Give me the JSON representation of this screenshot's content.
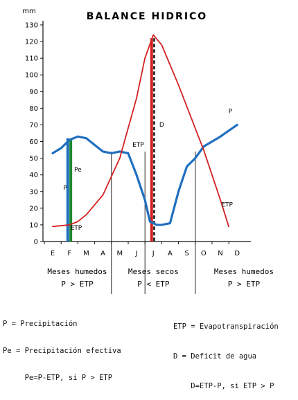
{
  "chart_data": {
    "type": "line",
    "title": "BALANCE HIDRICO",
    "ylabel": "mm",
    "ylim": [
      0,
      130
    ],
    "yticks": [
      0,
      10,
      20,
      30,
      40,
      50,
      60,
      70,
      80,
      90,
      100,
      110,
      120,
      130
    ],
    "categories": [
      "E",
      "F",
      "M",
      "A",
      "M",
      "J",
      "J",
      "A",
      "S",
      "O",
      "N",
      "D"
    ],
    "series": [
      {
        "name": "P",
        "color": "#1f6fbf",
        "x": [
          0,
          0.5,
          1,
          1.5,
          2,
          2.5,
          3,
          3.5,
          4,
          4.5,
          5,
          5.5,
          5.8,
          6.2,
          6.5,
          7,
          7.5,
          8,
          8.5,
          9,
          10,
          11
        ],
        "values": [
          53,
          56,
          61,
          63,
          62,
          58,
          54,
          53,
          54,
          53,
          40,
          25,
          12,
          10,
          10,
          11,
          30,
          45,
          50,
          57,
          63,
          70
        ]
      },
      {
        "name": "ETP",
        "color": "#d42020",
        "x": [
          0,
          1,
          1.5,
          2,
          3,
          4,
          5,
          5.5,
          6,
          6.5,
          7,
          7.5,
          8,
          8.5,
          9,
          10,
          10.5
        ],
        "values": [
          9,
          10,
          12,
          16,
          28,
          50,
          86,
          110,
          124,
          118,
          106,
          94,
          81,
          68,
          55,
          25,
          9
        ]
      }
    ],
    "bars": [
      {
        "name": "P",
        "x": 0.9,
        "value": 62,
        "color": "#1f6fbf"
      },
      {
        "name": "Pe",
        "x": 1.08,
        "value": 61,
        "color": "#1e8a2e"
      },
      {
        "name": "ETP",
        "x": 5.9,
        "value": 122,
        "color": "#d42020"
      },
      {
        "name": "D",
        "x": 6.05,
        "value": 122,
        "color": "#111111"
      }
    ],
    "annotations": [
      {
        "text": "P",
        "x": 0.75,
        "y": 31
      },
      {
        "text": "Pe",
        "x": 1.5,
        "y": 42
      },
      {
        "text": "ETP",
        "x": 1.4,
        "y": 7
      },
      {
        "text": "ETP",
        "x": 5.1,
        "y": 57
      },
      {
        "text": "D",
        "x": 6.5,
        "y": 69
      },
      {
        "text": "P",
        "x": 10.6,
        "y": 77
      },
      {
        "text": "ETP",
        "x": 10.4,
        "y": 21
      }
    ],
    "periods": [
      {
        "label": "Meses humedos",
        "condition": "P > ETP"
      },
      {
        "label": "Meses secos",
        "condition": "P < ETP"
      },
      {
        "label": "Meses humedos",
        "condition": "P > ETP"
      }
    ]
  },
  "legend": {
    "left": [
      "P = Precipitación",
      "Pe = Precipitación efectiva",
      "     Pe=P-ETP, si P > ETP"
    ],
    "right": [
      "ETP = Evapotranspiración",
      "D = Deficit de agua",
      "    D=ETP-P, si ETP > P"
    ]
  }
}
